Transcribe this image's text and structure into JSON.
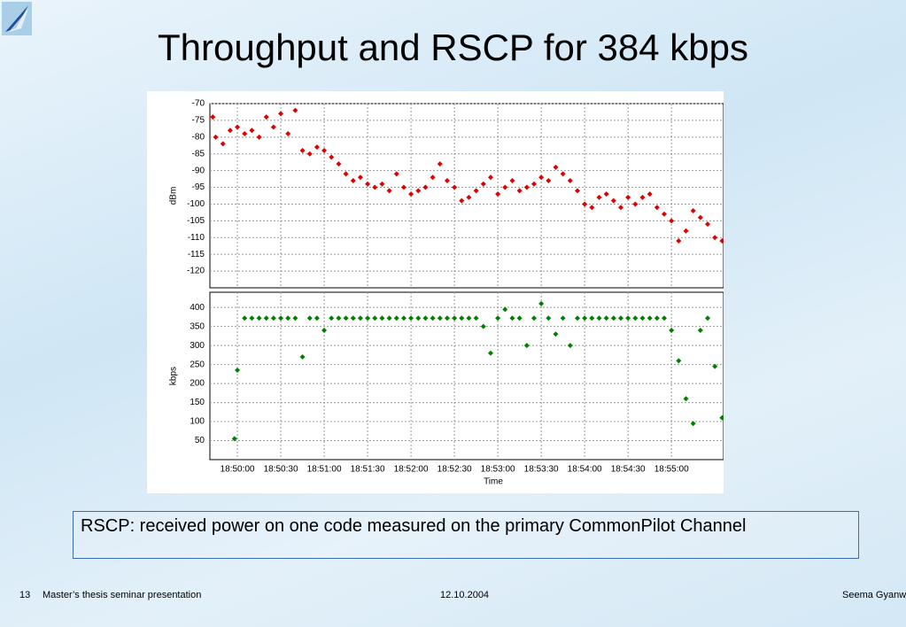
{
  "title": "Throughput and RSCP for 384 kbps",
  "chart_data": [
    {
      "type": "scatter",
      "y_label": "dBm",
      "color": "#e00000",
      "grid": true,
      "xlim": [
        67781,
        68136
      ],
      "xticks": [
        67800,
        67830,
        67860,
        67890,
        67920,
        67950,
        67980,
        68010,
        68040,
        68070,
        68100
      ],
      "ylim": [
        -125,
        -70
      ],
      "yticks": [
        -70,
        -75,
        -80,
        -85,
        -90,
        -95,
        -100,
        -105,
        -110,
        -115,
        -120
      ],
      "x": [
        67783,
        67785,
        67790,
        67795,
        67800,
        67805,
        67810,
        67815,
        67820,
        67825,
        67830,
        67835,
        67840,
        67845,
        67850,
        67855,
        67860,
        67865,
        67870,
        67875,
        67880,
        67885,
        67890,
        67895,
        67900,
        67905,
        67910,
        67915,
        67920,
        67925,
        67930,
        67935,
        67940,
        67945,
        67950,
        67955,
        67960,
        67965,
        67970,
        67975,
        67980,
        67985,
        67990,
        67995,
        68000,
        68005,
        68010,
        68015,
        68020,
        68025,
        68030,
        68035,
        68040,
        68045,
        68050,
        68055,
        68060,
        68065,
        68070,
        68075,
        68080,
        68085,
        68090,
        68095,
        68100,
        68105,
        68110,
        68115,
        68120,
        68125,
        68130,
        68135
      ],
      "values": [
        -74,
        -80,
        -82,
        -78,
        -77,
        -79,
        -78,
        -80,
        -74,
        -77,
        -73,
        -79,
        -72,
        -84,
        -85,
        -83,
        -84,
        -86,
        -88,
        -91,
        -93,
        -92,
        -94,
        -95,
        -94,
        -96,
        -91,
        -95,
        -97,
        -96,
        -95,
        -92,
        -88,
        -93,
        -95,
        -99,
        -98,
        -96,
        -94,
        -92,
        -97,
        -95,
        -93,
        -96,
        -95,
        -94,
        -92,
        -93,
        -89,
        -91,
        -93,
        -96,
        -100,
        -101,
        -98,
        -97,
        -99,
        -101,
        -98,
        -100,
        -98,
        -97,
        -101,
        -103,
        -105,
        -111,
        -108,
        -102,
        -104,
        -106,
        -110,
        -111
      ]
    },
    {
      "type": "scatter",
      "y_label": "kbps",
      "x_label": "Time",
      "color": "#008000",
      "grid": true,
      "xlim": [
        67781,
        68136
      ],
      "xticks": [
        {
          "value": 67800,
          "label": "18:50:00"
        },
        {
          "value": 67830,
          "label": "18:50:30"
        },
        {
          "value": 67860,
          "label": "18:51:00"
        },
        {
          "value": 67890,
          "label": "18:51:30"
        },
        {
          "value": 67920,
          "label": "18:52:00"
        },
        {
          "value": 67950,
          "label": "18:52:30"
        },
        {
          "value": 67980,
          "label": "18:53:00"
        },
        {
          "value": 68010,
          "label": "18:53:30"
        },
        {
          "value": 68040,
          "label": "18:54:00"
        },
        {
          "value": 68070,
          "label": "18:54:30"
        },
        {
          "value": 68100,
          "label": "18:55:00"
        }
      ],
      "ylim": [
        0,
        440
      ],
      "yticks": [
        50,
        100,
        150,
        200,
        250,
        300,
        350,
        400
      ],
      "x": [
        67798,
        67800,
        67805,
        67810,
        67815,
        67820,
        67825,
        67830,
        67835,
        67840,
        67845,
        67850,
        67855,
        67860,
        67865,
        67870,
        67875,
        67880,
        67885,
        67890,
        67895,
        67900,
        67905,
        67910,
        67915,
        67920,
        67925,
        67930,
        67935,
        67940,
        67945,
        67950,
        67955,
        67960,
        67965,
        67970,
        67975,
        67980,
        67985,
        67990,
        67995,
        68000,
        68005,
        68010,
        68015,
        68020,
        68025,
        68030,
        68035,
        68040,
        68045,
        68050,
        68055,
        68060,
        68065,
        68070,
        68075,
        68080,
        68085,
        68090,
        68095,
        68100,
        68105,
        68110,
        68115,
        68120,
        68125,
        68130,
        68135
      ],
      "values": [
        55,
        235,
        372,
        372,
        372,
        372,
        372,
        372,
        372,
        372,
        270,
        372,
        372,
        340,
        372,
        372,
        372,
        372,
        372,
        372,
        372,
        372,
        372,
        372,
        372,
        372,
        372,
        372,
        372,
        372,
        372,
        372,
        372,
        372,
        372,
        350,
        280,
        372,
        395,
        372,
        372,
        300,
        372,
        410,
        372,
        330,
        372,
        300,
        372,
        372,
        372,
        372,
        372,
        372,
        372,
        372,
        372,
        372,
        372,
        372,
        372,
        340,
        260,
        160,
        95,
        340,
        372,
        245,
        110
      ]
    }
  ],
  "note": "RSCP: received power on one code measured on the primary CommonPilot Channel",
  "footer": {
    "page": "13",
    "event": "Master’s thesis seminar presentation",
    "date": "12.10.2004",
    "author": "Seema Gyanw"
  }
}
